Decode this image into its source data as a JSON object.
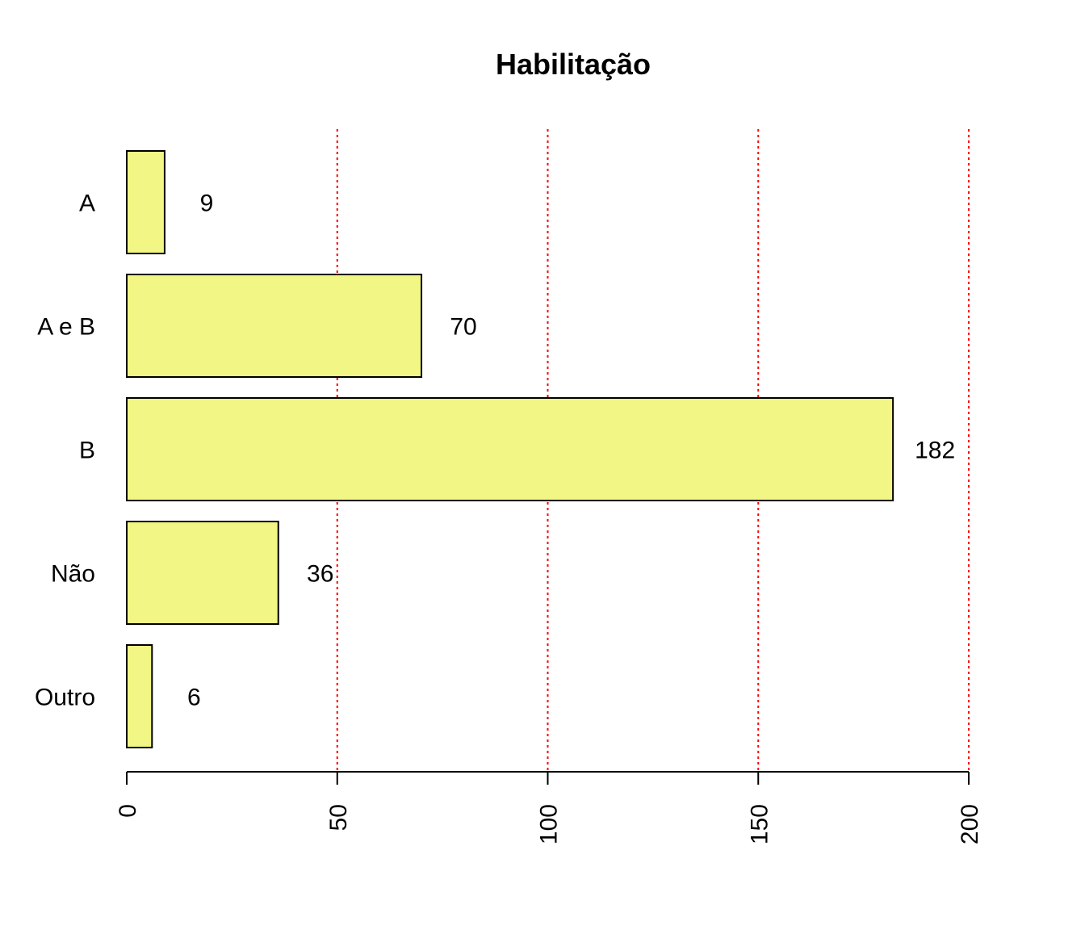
{
  "chart_data": {
    "type": "bar",
    "orientation": "horizontal",
    "title": "Habilitação",
    "xlabel": "",
    "ylabel": "",
    "categories": [
      "A",
      "A e B",
      "B",
      "Não",
      "Outro"
    ],
    "values": [
      9,
      70,
      182,
      36,
      6
    ],
    "xlim": [
      0,
      200
    ],
    "xticks": [
      0,
      50,
      100,
      150,
      200
    ],
    "grid": "vertical dotted lines at 50, 100, 150, 200",
    "colors": {
      "bar_fill": "#f2f684",
      "bar_stroke": "#000000",
      "grid": "#ff0000"
    },
    "value_labels": [
      "9",
      "70",
      "182",
      "36",
      "6"
    ]
  }
}
